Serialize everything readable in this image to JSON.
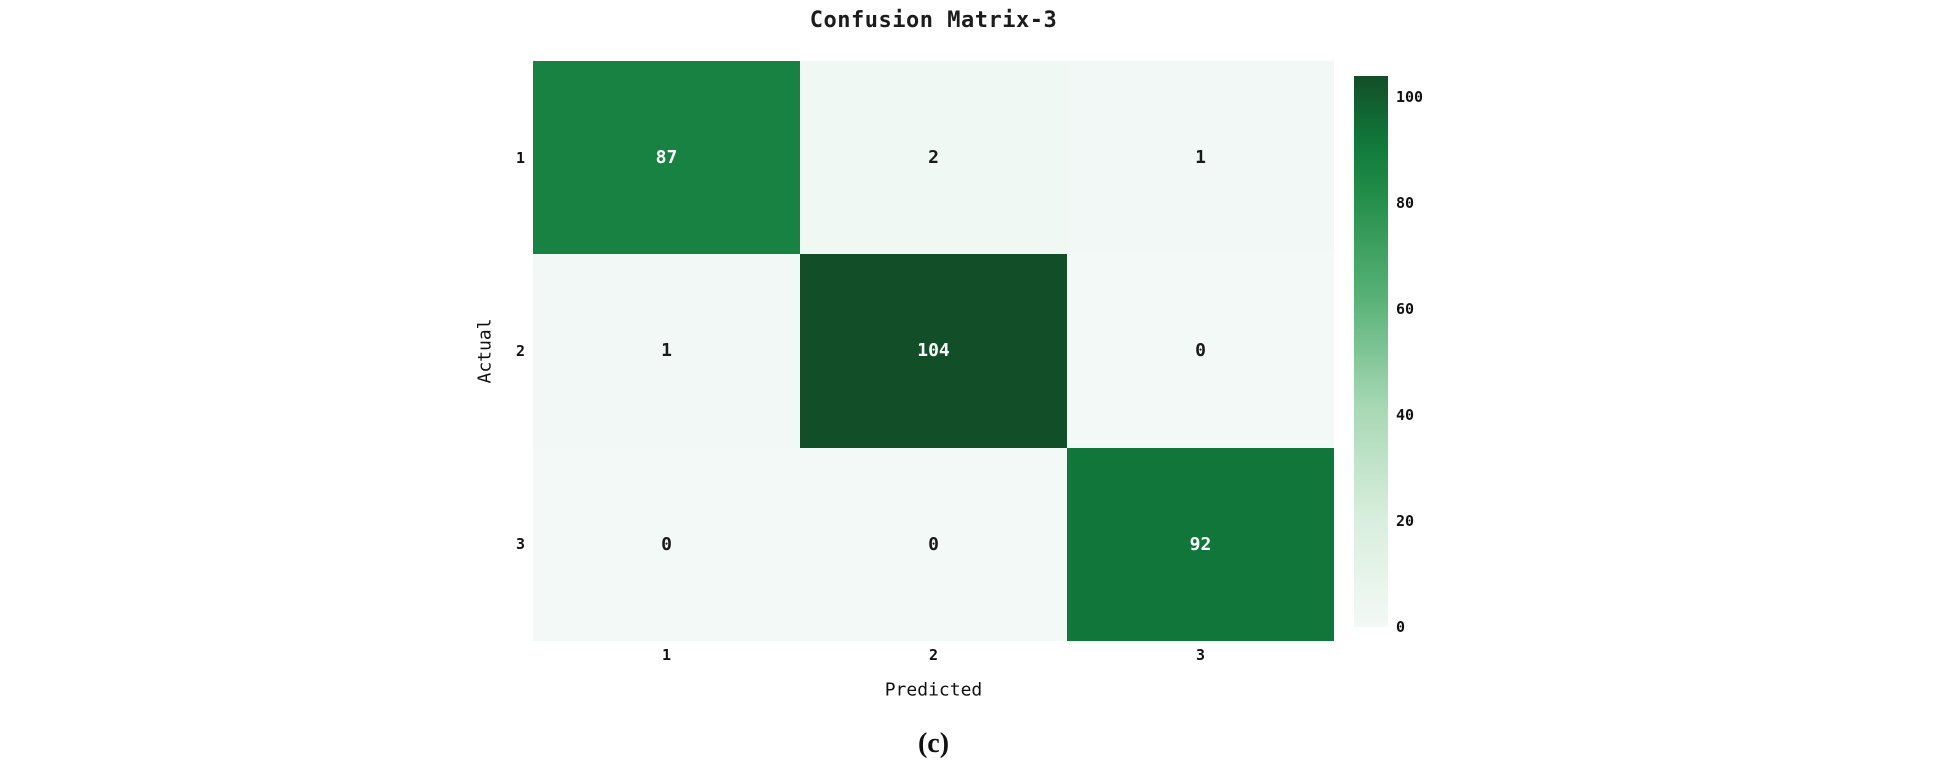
{
  "figure": {
    "caption": "(c)"
  },
  "chart_data": {
    "type": "heatmap",
    "title": "Confusion Matrix-3",
    "xlabel": "Predicted",
    "ylabel": "Actual",
    "x_tick_labels": [
      "1",
      "2",
      "3"
    ],
    "y_tick_labels": [
      "1",
      "2",
      "3"
    ],
    "matrix": [
      [
        87,
        2,
        1
      ],
      [
        1,
        104,
        0
      ],
      [
        0,
        0,
        92
      ]
    ],
    "vmin": 0,
    "vmax": 104,
    "colorbar_ticks": [
      100,
      80,
      60,
      40,
      20,
      0
    ],
    "colorbar_position": "right",
    "grid": false,
    "colors": {
      "cmap_stops": [
        [
          0.0,
          "#f3f9f6"
        ],
        [
          0.2,
          "#d8eedd"
        ],
        [
          0.4,
          "#a7d8b4"
        ],
        [
          0.6,
          "#57b176"
        ],
        [
          0.8,
          "#1e8a46"
        ],
        [
          0.87,
          "#117b3c"
        ],
        [
          1.0,
          "#124e28"
        ]
      ],
      "text_on_dark": "#ffffff",
      "text_on_light": "#1a1a1a",
      "axis_text": "#111111"
    }
  }
}
